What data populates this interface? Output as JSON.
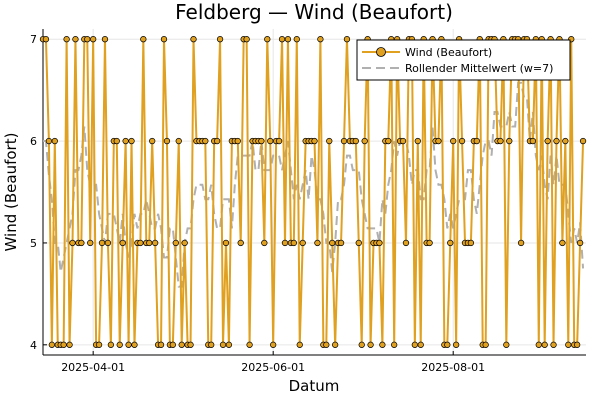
{
  "chart_data": {
    "type": "line",
    "title": "Feldberg — Wind (Beaufort)",
    "xlabel": "Datum",
    "ylabel": "Wind (Beaufort)",
    "x_start": "2025-03-15",
    "x_end": "2025-09-15",
    "ylim": [
      3.9,
      7.1
    ],
    "x_ticks": [
      {
        "date": "2025-04-01",
        "label": "2025-04-01"
      },
      {
        "date": "2025-06-01",
        "label": "2025-06-01"
      },
      {
        "date": "2025-08-01",
        "label": "2025-08-01"
      }
    ],
    "y_ticks": [
      4,
      5,
      6,
      7
    ],
    "grid": true,
    "legend": {
      "position": "top-right"
    },
    "colors": {
      "series": "#e0a020",
      "series_edge": "#000000",
      "rolling": "#b0b0b0"
    },
    "series": [
      {
        "name": "Wind (Beaufort)",
        "x_start": "2025-03-15",
        "step_days": 1,
        "values": [
          7,
          7,
          6,
          4,
          6,
          4,
          4,
          4,
          7,
          4,
          5,
          7,
          5,
          5,
          7,
          7,
          5,
          7,
          4,
          4,
          5,
          7,
          5,
          4,
          6,
          6,
          4,
          5,
          6,
          4,
          6,
          4,
          5,
          5,
          7,
          5,
          5,
          6,
          5,
          4,
          4,
          7,
          6,
          4,
          4,
          5,
          6,
          4,
          5,
          4,
          4,
          7,
          6,
          6,
          6,
          6,
          4,
          4,
          6,
          6,
          7,
          4,
          5,
          4,
          6,
          6,
          6,
          5,
          7,
          7,
          4,
          6,
          6,
          6,
          6,
          5,
          7,
          6,
          4,
          6,
          6,
          7,
          5,
          7,
          5,
          5,
          7,
          4,
          5,
          6,
          6,
          6,
          6,
          5,
          7,
          4,
          4,
          6,
          5,
          4,
          5,
          5,
          6,
          7,
          6,
          6,
          6,
          5,
          4,
          6,
          7,
          4,
          5,
          5,
          5,
          4,
          6,
          6,
          7,
          4,
          7,
          6,
          6,
          5,
          7,
          7,
          4,
          6,
          4,
          7,
          5,
          5,
          7,
          6,
          6,
          7,
          4,
          4,
          5,
          6,
          4,
          7,
          6,
          5,
          5,
          5,
          6,
          6,
          7,
          4,
          4,
          7,
          7,
          7,
          6,
          6,
          7,
          4,
          6,
          7,
          7,
          7,
          5,
          7,
          7,
          6,
          6,
          7,
          4,
          7,
          4,
          6,
          7,
          4,
          6,
          7,
          5,
          6,
          4,
          7,
          4,
          4,
          5,
          6
        ]
      },
      {
        "name": "Rollender Mittelwert (w=7)",
        "rolling_window": 7
      }
    ]
  }
}
